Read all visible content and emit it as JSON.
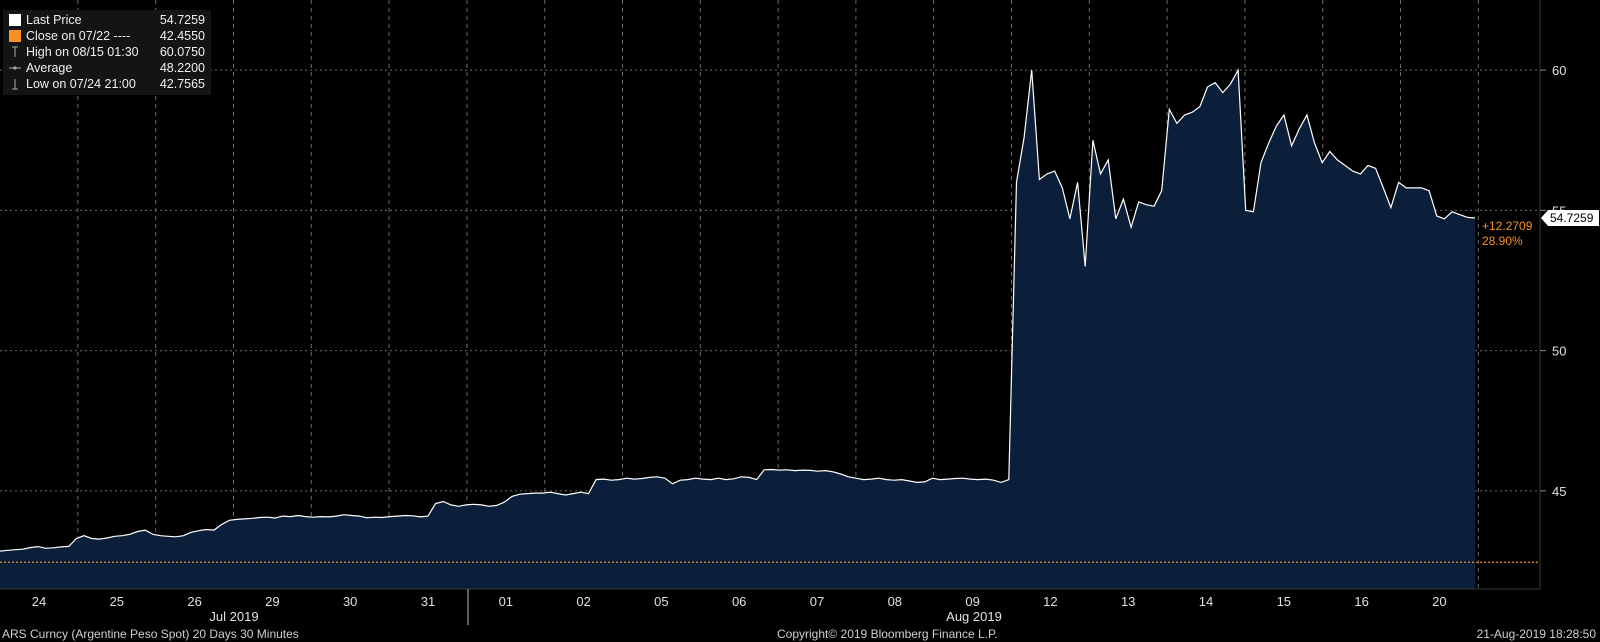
{
  "legend": {
    "items": [
      {
        "label": "Last Price",
        "value": "54.7259",
        "icon": "white-square",
        "color": "#ffffff"
      },
      {
        "label": "Close on 07/22 ----",
        "value": "42.4550",
        "icon": "orange-square",
        "color": "#f7931e"
      },
      {
        "label": "High on 08/15 01:30",
        "value": "60.0750",
        "icon": "high-marker-icon",
        "color": "#aaaaaa"
      },
      {
        "label": "Average",
        "value": "48.2200",
        "icon": "average-marker-icon",
        "color": "#aaaaaa"
      },
      {
        "label": "Low on 07/24 21:00",
        "value": "42.7565",
        "icon": "low-marker-icon",
        "color": "#aaaaaa"
      }
    ]
  },
  "footer": {
    "left": "ARS Curncy (Argentine Peso Spot) 20 Days 30 Minutes",
    "center": "Copyright© 2019 Bloomberg Finance L.P.",
    "right": "21-Aug-2019 18:28:50"
  },
  "colors": {
    "background": "#000000",
    "area_fill": "#0b1f3a",
    "line": "#ffffff",
    "close_line": "#f7931e",
    "change_text": "#f7931e",
    "grid": "#6a6a6a"
  },
  "chart_data": {
    "type": "area",
    "ylim": [
      41.5,
      62.5
    ],
    "y_ticks": [
      "45",
      "50",
      "55",
      "60"
    ],
    "y_tick_values": [
      45,
      50,
      55,
      60
    ],
    "grid": true,
    "legend_position": "top-left",
    "x_day_labels": [
      "24",
      "25",
      "26",
      "29",
      "30",
      "31",
      "01",
      "02",
      "05",
      "06",
      "07",
      "08",
      "09",
      "12",
      "13",
      "14",
      "15",
      "16",
      "20"
    ],
    "x_month_labels": [
      "Jul 2019",
      "Aug 2019"
    ],
    "close_reference": 42.455,
    "last_price_label": "54.7259",
    "change_abs": "+12.2709",
    "change_pct": "28.90%",
    "series": [
      {
        "name": "Last Price",
        "values": [
          42.85,
          42.88,
          42.9,
          42.92,
          42.98,
          43.01,
          42.95,
          42.97,
          43.0,
          43.02,
          43.3,
          43.4,
          43.3,
          43.28,
          43.32,
          43.38,
          43.4,
          43.45,
          43.55,
          43.6,
          43.45,
          43.4,
          43.38,
          43.36,
          43.4,
          43.52,
          43.58,
          43.62,
          43.6,
          43.8,
          43.95,
          43.98,
          44.0,
          44.02,
          44.05,
          44.06,
          44.03,
          44.1,
          44.08,
          44.12,
          44.08,
          44.06,
          44.08,
          44.07,
          44.1,
          44.15,
          44.12,
          44.1,
          44.04,
          44.06,
          44.05,
          44.08,
          44.1,
          44.12,
          44.11,
          44.07,
          44.1,
          44.55,
          44.62,
          44.5,
          44.45,
          44.5,
          44.52,
          44.5,
          44.45,
          44.48,
          44.6,
          44.8,
          44.88,
          44.9,
          44.92,
          44.92,
          44.95,
          44.9,
          44.85,
          44.9,
          44.95,
          44.9,
          45.4,
          45.42,
          45.38,
          45.4,
          45.45,
          45.42,
          45.44,
          45.48,
          45.5,
          45.45,
          45.25,
          45.38,
          45.4,
          45.45,
          45.42,
          45.4,
          45.45,
          45.4,
          45.43,
          45.5,
          45.48,
          45.4,
          45.75,
          45.76,
          45.74,
          45.75,
          45.72,
          45.74,
          45.73,
          45.7,
          45.72,
          45.68,
          45.6,
          45.5,
          45.45,
          45.4,
          45.42,
          45.45,
          45.4,
          45.38,
          45.4,
          45.35,
          45.3,
          45.32,
          45.45,
          45.4,
          45.42,
          45.44,
          45.45,
          45.42,
          45.4,
          45.42,
          45.38,
          45.3,
          45.4,
          56.0,
          57.6,
          60.0,
          56.1,
          56.3,
          56.4,
          55.8,
          54.7,
          56.0,
          53.0,
          57.5,
          56.3,
          56.8,
          54.7,
          55.4,
          54.4,
          55.3,
          55.2,
          55.15,
          55.7,
          58.6,
          58.1,
          58.4,
          58.5,
          58.7,
          59.4,
          59.55,
          59.2,
          59.5,
          60.0,
          55.0,
          54.95,
          56.7,
          57.4,
          58.0,
          58.4,
          57.3,
          57.9,
          58.4,
          57.4,
          56.7,
          57.1,
          56.8,
          56.6,
          56.4,
          56.3,
          56.6,
          56.5,
          55.8,
          55.1,
          56.0,
          55.8,
          55.8,
          55.8,
          55.7,
          54.8,
          54.7,
          54.95,
          54.85,
          54.75,
          54.7259
        ]
      }
    ]
  }
}
